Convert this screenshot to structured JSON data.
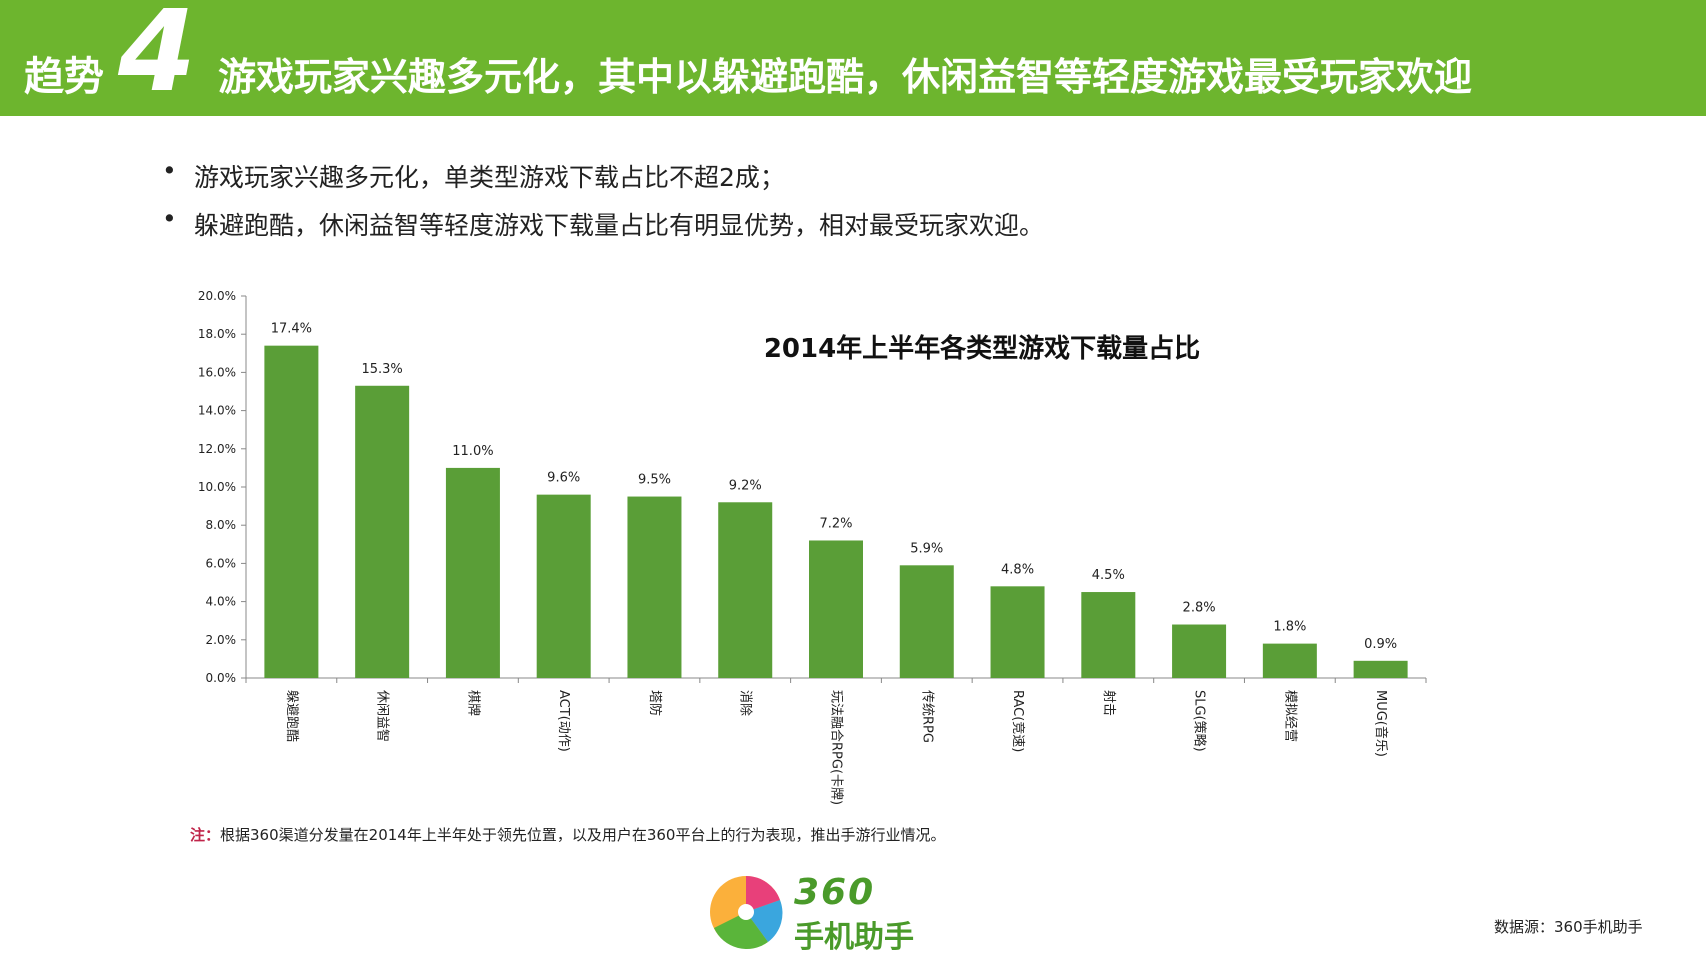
{
  "header": {
    "label": "趋势",
    "number": "4",
    "title": "游戏玩家兴趣多元化，其中以躲避跑酷，休闲益智等轻度游戏最受玩家欢迎"
  },
  "bullets": [
    "游戏玩家兴趣多元化，单类型游戏下载占比不超2成；",
    "躲避跑酷，休闲益智等轻度游戏下载量占比有明显优势，相对最受玩家欢迎。"
  ],
  "chart_data": {
    "type": "bar",
    "title": "2014年上半年各类型游戏下载量占比",
    "categories": [
      "躲避跑酷",
      "休闲益智",
      "棋牌",
      "ACT(动作)",
      "塔防",
      "消除",
      "玩法融合RPG(卡牌)",
      "传统RPG",
      "RAC(竞速)",
      "射击",
      "SLG(策略)",
      "模拟经营",
      "MUG(音乐)"
    ],
    "values": [
      17.4,
      15.3,
      11.0,
      9.6,
      9.5,
      9.2,
      7.2,
      5.9,
      4.8,
      4.5,
      2.8,
      1.8,
      0.9
    ],
    "value_labels": [
      "17.4%",
      "15.3%",
      "11.0%",
      "9.6%",
      "9.5%",
      "9.2%",
      "7.2%",
      "5.9%",
      "4.8%",
      "4.5%",
      "2.8%",
      "1.8%",
      "0.9%"
    ],
    "yticks": [
      "0.0%",
      "2.0%",
      "4.0%",
      "6.0%",
      "8.0%",
      "10.0%",
      "12.0%",
      "14.0%",
      "16.0%",
      "18.0%",
      "20.0%"
    ],
    "ylim": [
      0,
      20
    ],
    "xlabel": "",
    "ylabel": "",
    "bar_color": "#5a9e37",
    "grid": false,
    "legend": "none"
  },
  "note": {
    "prefix": "注：",
    "text": "根据360渠道分发量在2014年上半年处于领先位置，以及用户在360平台上的行为表现，推出手游行业情况。"
  },
  "brand": {
    "number": "360",
    "name": "手机助手"
  },
  "source": "数据源：360手机助手",
  "colors": {
    "header": "#6db52e",
    "bar": "#5a9e37",
    "note_highlight": "#c0254a"
  }
}
